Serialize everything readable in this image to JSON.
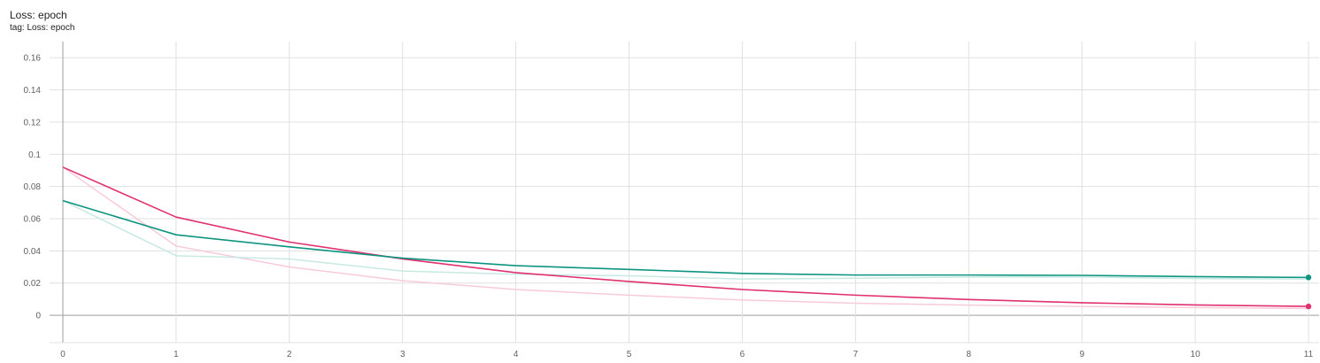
{
  "card": {
    "title": "Loss: epoch",
    "subtitle": "tag: Loss: epoch"
  },
  "chart_data": {
    "type": "line",
    "title": "Loss: epoch",
    "xlabel": "",
    "ylabel": "",
    "xlim": [
      0,
      11
    ],
    "ylim": [
      -0.017,
      0.17
    ],
    "x_ticks": [
      0,
      1,
      2,
      3,
      4,
      5,
      6,
      7,
      8,
      9,
      10,
      11
    ],
    "y_ticks": [
      0,
      0.02,
      0.04,
      0.06,
      0.08,
      0.1,
      0.12,
      0.14,
      0.16
    ],
    "y_tick_labels": [
      "0",
      "0.02",
      "0.04",
      "0.06",
      "0.08",
      "0.1",
      "0.12",
      "0.14",
      "0.16"
    ],
    "grid": true,
    "series": [
      {
        "color": "#e0306f",
        "raw_color": "#f8cbd9",
        "x": [
          0,
          1,
          2,
          3,
          4,
          5,
          6,
          7,
          8,
          9,
          10,
          11
        ],
        "smoothed": [
          0.092,
          0.061,
          0.0455,
          0.035,
          0.0265,
          0.021,
          0.016,
          0.0125,
          0.0098,
          0.0078,
          0.0064,
          0.0055
        ],
        "raw": [
          0.092,
          0.043,
          0.03,
          0.0215,
          0.016,
          0.0125,
          0.0095,
          0.0075,
          0.0063,
          0.0055,
          0.0048,
          0.0042
        ]
      },
      {
        "color": "#0d9480",
        "raw_color": "#c8e9e3",
        "x": [
          0,
          1,
          2,
          3,
          4,
          5,
          6,
          7,
          8,
          9,
          10,
          11
        ],
        "smoothed": [
          0.0712,
          0.05,
          0.0425,
          0.0355,
          0.0308,
          0.0285,
          0.026,
          0.025,
          0.025,
          0.0248,
          0.024,
          0.0235
        ],
        "raw": [
          0.0712,
          0.037,
          0.035,
          0.0275,
          0.0255,
          0.0245,
          0.0225,
          0.023,
          0.0238,
          0.0238,
          0.0228,
          0.0225
        ]
      }
    ]
  }
}
